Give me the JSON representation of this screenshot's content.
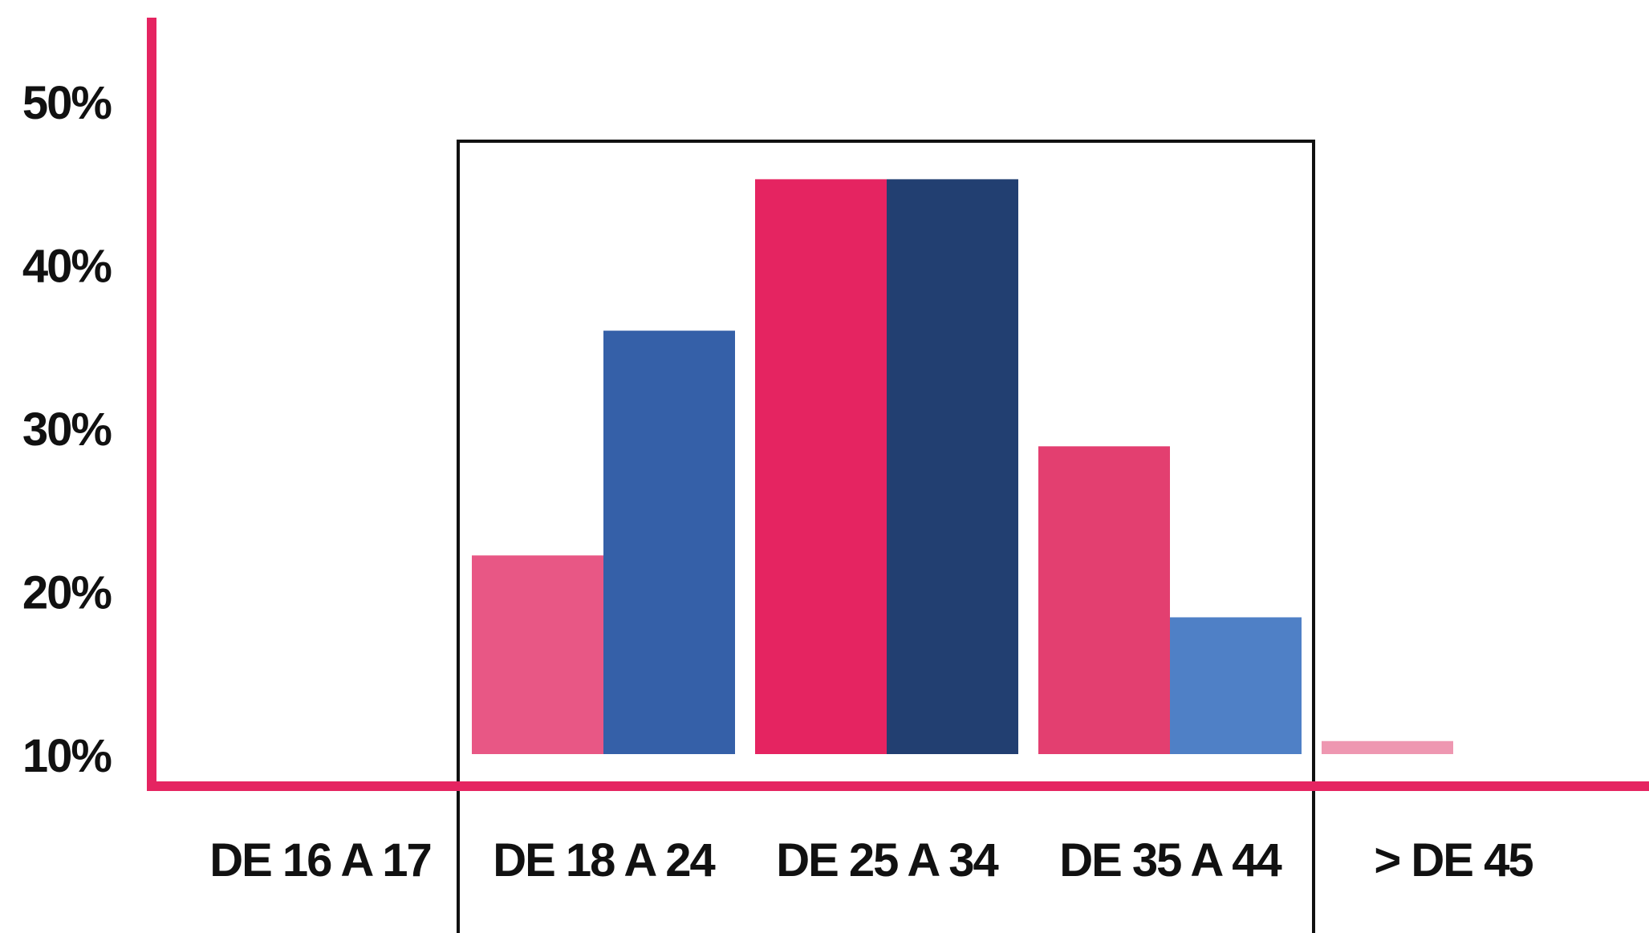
{
  "chart_data": {
    "type": "bar",
    "title": "",
    "xlabel": "",
    "ylabel": "",
    "categories": [
      "DE 16 A 17",
      "DE 18 A 24",
      "DE 25 A 34",
      "DE 35 A 44",
      "> DE 45"
    ],
    "y_ticks": [
      "10%",
      "20%",
      "30%",
      "40%",
      "50%"
    ],
    "ylim": [
      8,
      52
    ],
    "baseline": 10,
    "grid": false,
    "legend": "none",
    "series": [
      {
        "values": [
          9.5,
          22.2,
          45.3,
          28.9,
          10.8
        ]
      },
      {
        "values": [
          9.5,
          36.0,
          45.3,
          18.4,
          9.5
        ]
      }
    ],
    "bar_colors": [
      [
        "#f6cdd9",
        "#a0bbe6"
      ],
      [
        "#e85785",
        "#3560a8"
      ],
      [
        "#e52461",
        "#223f71"
      ],
      [
        "#e33f70",
        "#4f80c6"
      ],
      [
        "#ee97b1",
        "#92b2e1"
      ]
    ],
    "highlight_categories": [
      "DE 18 A 24",
      "DE 25 A 34",
      "DE 35 A 44"
    ],
    "axis_color": "#e52461",
    "highlight_border_color": "#111111"
  }
}
